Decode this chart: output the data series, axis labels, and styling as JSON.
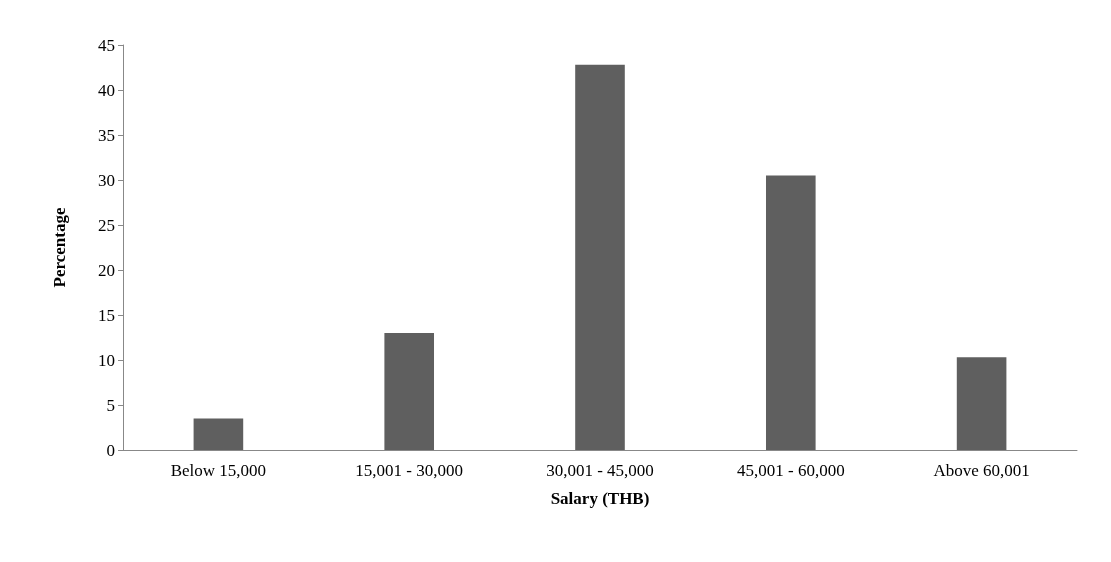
{
  "chart_data": {
    "type": "bar",
    "xlabel": "Salary (THB)",
    "ylabel": "Percentage",
    "categories": [
      "Below 15,000",
      "15,001 - 30,000",
      "30,001 - 45,000",
      "45,001 - 60,000",
      "Above 60,001"
    ],
    "values": [
      3.5,
      13,
      42.8,
      30.5,
      10.3
    ],
    "color": "#5f5f5f",
    "ylim": [
      0,
      45
    ],
    "yticks": [
      0,
      5,
      10,
      15,
      20,
      25,
      30,
      35,
      40,
      45
    ],
    "grid": false
  }
}
